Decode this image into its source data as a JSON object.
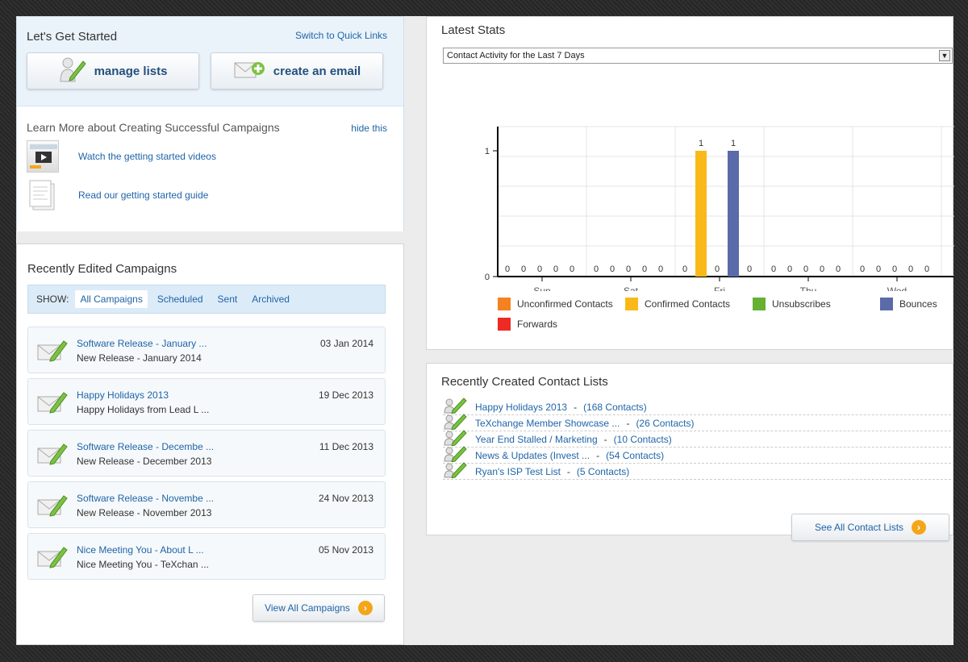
{
  "getting_started": {
    "title": "Let's Get Started",
    "quick_links": "Switch to Quick Links",
    "manage_lists": "manage lists",
    "create_email": "create an email",
    "learn_title": "Learn More about Creating Successful Campaigns",
    "hide": "hide this",
    "videos": "Watch the getting started videos",
    "guide": "Read our getting started guide"
  },
  "campaigns": {
    "title": "Recently Edited Campaigns",
    "show_label": "SHOW:",
    "tabs": [
      "All Campaigns",
      "Scheduled",
      "Sent",
      "Archived"
    ],
    "rows": [
      {
        "name": "Software Release - January ...",
        "sub": "New Release - January 2014",
        "date": "03 Jan 2014"
      },
      {
        "name": "Happy Holidays 2013",
        "sub": "Happy Holidays from Lead L ...",
        "date": "19 Dec 2013"
      },
      {
        "name": "Software Release - Decembe ...",
        "sub": "New Release - December 2013",
        "date": "11 Dec 2013"
      },
      {
        "name": "Software Release - Novembe ...",
        "sub": "New Release - November 2013",
        "date": "24 Nov 2013"
      },
      {
        "name": "Nice Meeting You - About L ...",
        "sub": "Nice Meeting You - TeXchan ...",
        "date": "05 Nov 2013"
      }
    ],
    "view_all": "View All Campaigns"
  },
  "stats": {
    "title": "Latest Stats",
    "select_value": "Contact Activity for the Last 7 Days",
    "legend": [
      {
        "label": "Unconfirmed Contacts",
        "color": "#f58220"
      },
      {
        "label": "Confirmed Contacts",
        "color": "#f9b919"
      },
      {
        "label": "Unsubscribes",
        "color": "#66b032"
      },
      {
        "label": "Bounces",
        "color": "#5b6aa8"
      },
      {
        "label": "Forwards",
        "color": "#ee2a24"
      }
    ]
  },
  "chart_data": {
    "type": "bar",
    "categories": [
      "Sun",
      "Sat",
      "Fri",
      "Thu",
      "Wed"
    ],
    "series": [
      {
        "name": "Unconfirmed Contacts",
        "values": [
          0,
          0,
          0,
          0,
          0
        ]
      },
      {
        "name": "Confirmed Contacts",
        "values": [
          0,
          0,
          1,
          0,
          0
        ]
      },
      {
        "name": "Unsubscribes",
        "values": [
          0,
          0,
          0,
          0,
          0
        ]
      },
      {
        "name": "Bounces",
        "values": [
          0,
          0,
          1,
          0,
          0
        ]
      },
      {
        "name": "Forwards",
        "values": [
          0,
          0,
          0,
          0,
          0
        ]
      }
    ],
    "ylim": [
      0,
      1
    ],
    "yticks": [
      "0",
      "1"
    ]
  },
  "contact_lists": {
    "title": "Recently Created Contact Lists",
    "rows": [
      {
        "name": "Happy Holidays 2013",
        "count": "(168 Contacts)"
      },
      {
        "name": "TeXchange Member Showcase ...",
        "count": "(26 Contacts)"
      },
      {
        "name": "Year End Stalled / Marketing",
        "count": "(10 Contacts)"
      },
      {
        "name": "News & Updates (Invest ...",
        "count": "(54 Contacts)"
      },
      {
        "name": "Ryan's ISP Test List",
        "count": "(5 Contacts)"
      }
    ],
    "separator": "-",
    "see_all": "See All Contact Lists"
  }
}
